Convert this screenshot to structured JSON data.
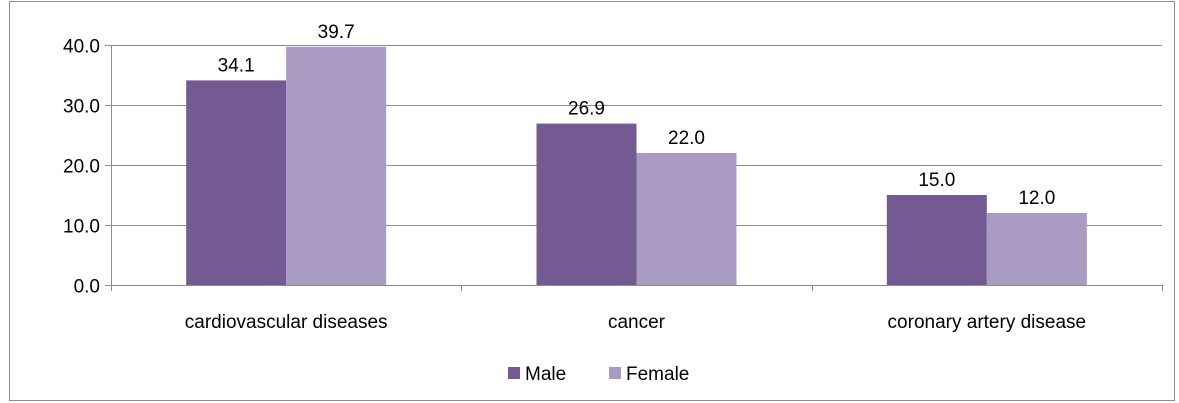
{
  "chart_data": {
    "type": "bar",
    "title": "",
    "xlabel": "",
    "ylabel": "",
    "categories": [
      "cardiovascular diseases",
      "cancer",
      "coronary artery disease"
    ],
    "series": [
      {
        "name": "Male",
        "values": [
          34.1,
          26.9,
          15.0
        ],
        "color": "#735A92"
      },
      {
        "name": "Female",
        "values": [
          39.7,
          22.0,
          12.0
        ],
        "color": "#AA9BC3"
      }
    ],
    "data_labels": [
      [
        "34.1",
        "26.9",
        "15.0"
      ],
      [
        "39.7",
        "22.0",
        "12.0"
      ]
    ],
    "ylim": [
      0,
      40
    ],
    "yticks": [
      "0.0",
      "10.0",
      "20.0",
      "30.0",
      "40.0"
    ],
    "grid": true,
    "legend_position": "bottom"
  }
}
